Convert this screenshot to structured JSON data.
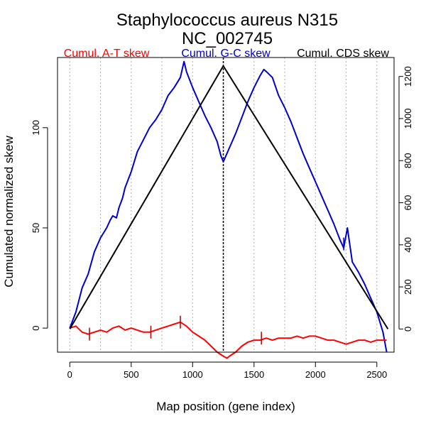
{
  "chart_data": {
    "type": "line",
    "title": "Staphylococcus aureus N315",
    "subtitle": "NC_002745",
    "xlabel": "Map position (gene index)",
    "ylabel": "Cumulated normalized skew",
    "xlim": [
      -100,
      2640
    ],
    "ylim": [
      -12,
      135
    ],
    "ylim_right": [
      -110,
      1290
    ],
    "x_ticks": [
      0,
      500,
      1000,
      1500,
      2000,
      2500
    ],
    "y_ticks": [
      0,
      50,
      100
    ],
    "y_ticks_right": [
      0,
      200,
      400,
      600,
      800,
      1000,
      1200
    ],
    "grid_x": [
      0,
      250,
      500,
      750,
      1000,
      1250,
      1500,
      1750,
      2000,
      2250,
      2500
    ],
    "vline_x": 1250,
    "legend": [
      {
        "label": "Cumul. A-T skew",
        "color": "#ff0000"
      },
      {
        "label": "Cumul. G-C skew",
        "color": "#0000cc"
      },
      {
        "label": "Cumul. CDS skew",
        "color": "#000000"
      }
    ],
    "series": [
      {
        "name": "Cumul. G-C skew",
        "color": "#0000cc",
        "axis": "left",
        "x": [
          0,
          50,
          100,
          150,
          200,
          250,
          300,
          330,
          350,
          380,
          400,
          430,
          450,
          500,
          550,
          600,
          650,
          700,
          750,
          800,
          850,
          900,
          930,
          950,
          1000,
          1050,
          1100,
          1150,
          1200,
          1230,
          1250,
          1300,
          1350,
          1400,
          1450,
          1500,
          1550,
          1580,
          1600,
          1650,
          1700,
          1750,
          1800,
          1850,
          1900,
          1950,
          2000,
          2050,
          2100,
          2150,
          2200,
          2230,
          2260,
          2300,
          2350,
          2400,
          2450,
          2500,
          2550,
          2580
        ],
        "values": [
          0,
          8,
          20,
          27,
          38,
          45,
          50,
          54,
          56,
          55,
          60,
          65,
          70,
          78,
          88,
          94,
          100,
          104,
          109,
          116,
          120,
          125,
          133,
          128,
          120,
          113,
          106,
          100,
          93,
          86,
          83,
          90,
          97,
          105,
          113,
          120,
          126,
          129,
          128,
          125,
          116,
          110,
          103,
          95,
          87,
          80,
          73,
          66,
          59,
          52,
          44,
          40,
          50,
          33,
          28,
          22,
          15,
          8,
          -2,
          -12
        ]
      },
      {
        "name": "Cumul. A-T skew",
        "color": "#ff0000",
        "axis": "left",
        "x": [
          0,
          50,
          100,
          150,
          200,
          250,
          300,
          350,
          400,
          450,
          500,
          550,
          600,
          650,
          700,
          750,
          800,
          850,
          900,
          950,
          1000,
          1050,
          1100,
          1150,
          1200,
          1250,
          1280,
          1300,
          1350,
          1400,
          1450,
          1500,
          1550,
          1600,
          1650,
          1700,
          1750,
          1800,
          1850,
          1900,
          1950,
          2000,
          2050,
          2100,
          2150,
          2200,
          2250,
          2300,
          2350,
          2400,
          2450,
          2500,
          2550,
          2580
        ],
        "values": [
          0,
          1,
          -2,
          -3,
          -2,
          -1,
          -2,
          0,
          1,
          -1,
          0,
          -1,
          -2,
          -2,
          -1,
          0,
          1,
          2,
          3,
          1,
          -2,
          -4,
          -6,
          -9,
          -12,
          -14,
          -15,
          -14,
          -12,
          -9,
          -7,
          -6,
          -6,
          -5,
          -6,
          -5,
          -5,
          -5,
          -4,
          -5,
          -4,
          -4,
          -5,
          -6,
          -6,
          -7,
          -8,
          -7,
          -6,
          -6,
          -7,
          -6,
          -6,
          -6
        ]
      },
      {
        "name": "Cumul. CDS skew",
        "color": "#000000",
        "axis": "right",
        "x": [
          0,
          1250,
          2590
        ],
        "values": [
          0,
          1250,
          0
        ]
      }
    ],
    "markers": [
      {
        "x": 160,
        "y": -3
      },
      {
        "x": 660,
        "y": -2
      },
      {
        "x": 900,
        "y": 3
      },
      {
        "x": 1560,
        "y": -5
      },
      {
        "x": 2230,
        "y": 42
      }
    ]
  }
}
